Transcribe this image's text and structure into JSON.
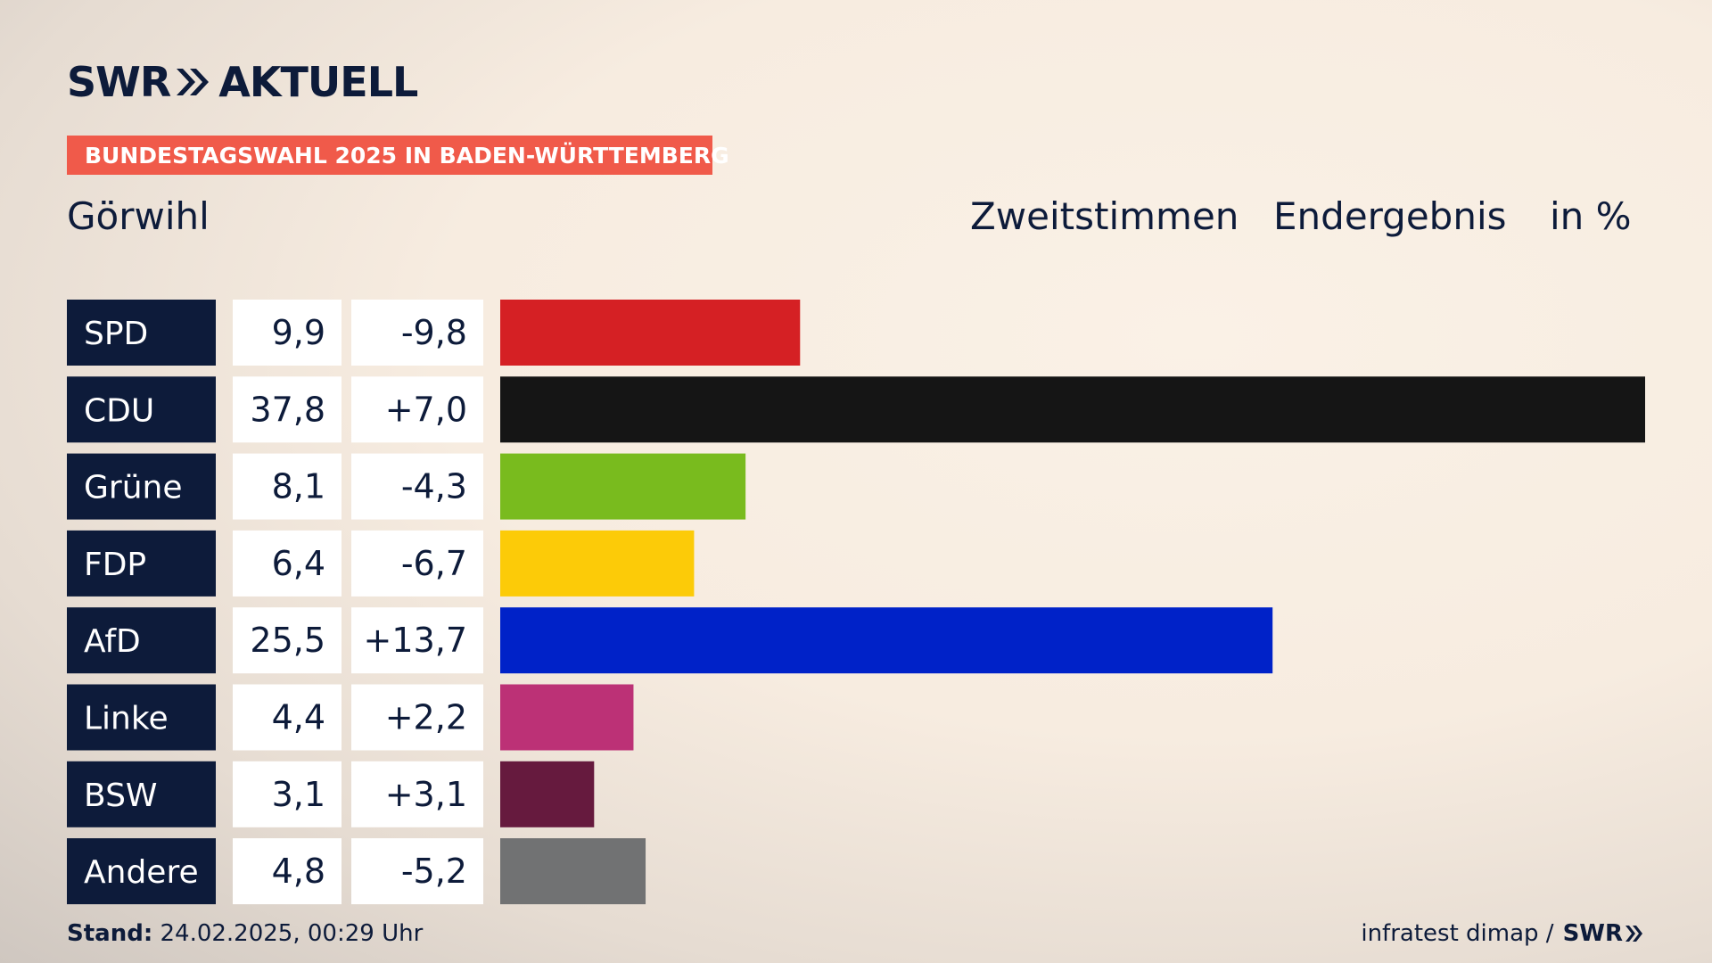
{
  "header": {
    "brand_left": "SWR",
    "brand_right": "AKTUELL",
    "banner": "BUNDESTAGSWAHL 2025 IN BADEN-WÜRTTEMBERG",
    "place": "Görwihl",
    "vote_type": "Zweitstimmen",
    "result_type": "Endergebnis",
    "unit": "in %"
  },
  "footer": {
    "stand_label": "Stand:",
    "stand_value": "24.02.2025, 00:29 Uhr",
    "source": "infratest dimap /",
    "source_brand": "SWR"
  },
  "chart_data": {
    "type": "bar",
    "orientation": "horizontal",
    "categories": [
      "SPD",
      "CDU",
      "Grüne",
      "FDP",
      "AfD",
      "Linke",
      "BSW",
      "Andere"
    ],
    "values": [
      9.9,
      37.8,
      8.1,
      6.4,
      25.5,
      4.4,
      3.1,
      4.8
    ],
    "value_labels": [
      "9,9",
      "37,8",
      "8,1",
      "6,4",
      "25,5",
      "4,4",
      "3,1",
      "4,8"
    ],
    "change_labels": [
      "-9,8",
      "+7,0",
      "-4,3",
      "-6,7",
      "+13,7",
      "+2,2",
      "+3,1",
      "-5,2"
    ],
    "changes": [
      -9.8,
      7.0,
      -4.3,
      -6.7,
      13.7,
      2.2,
      3.1,
      -5.2
    ],
    "colors": [
      "#d52024",
      "#151515",
      "#79bb1e",
      "#fccb08",
      "#0022c8",
      "#bc3176",
      "#661a3e",
      "#717273"
    ],
    "xlim": [
      0,
      37.8
    ],
    "grid": false,
    "legend": "none"
  }
}
